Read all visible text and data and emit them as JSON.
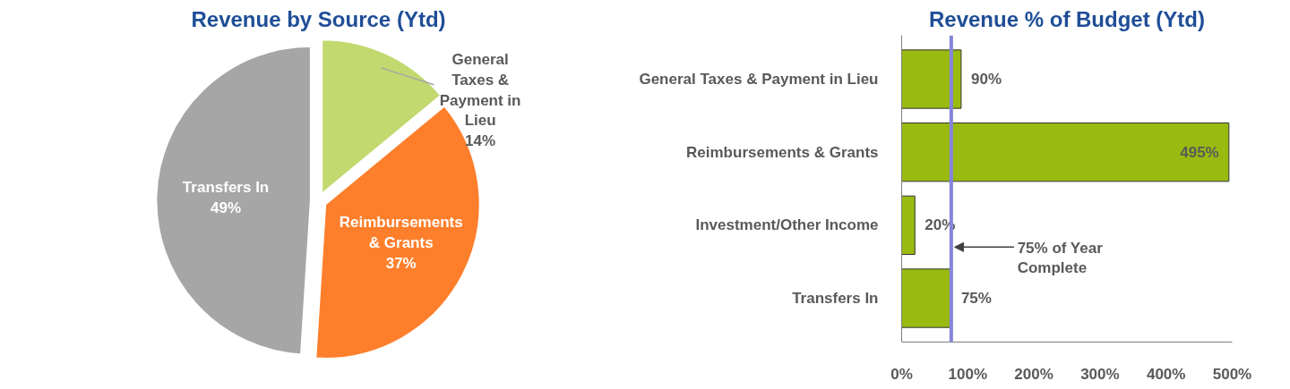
{
  "chart_data": [
    {
      "type": "pie",
      "title": "Revenue by Source (Ytd)",
      "categories": [
        "General Taxes & Payment in Lieu",
        "Reimbursements & Grants",
        "Transfers In"
      ],
      "values": [
        14,
        37,
        49
      ],
      "colors": [
        "#c2d96f",
        "#fd7f2c",
        "#a6a6a6"
      ],
      "value_labels": [
        "14%",
        "37%",
        "49%"
      ]
    },
    {
      "type": "bar",
      "orientation": "horizontal",
      "title": "Revenue % of Budget (Ytd)",
      "categories": [
        "General Taxes & Payment in Lieu",
        "Reimbursements & Grants",
        "Investment/Other Income",
        "Transfers In"
      ],
      "values": [
        90,
        495,
        20,
        75
      ],
      "color": "#99bb11",
      "value_labels": [
        "90%",
        "495%",
        "20%",
        "75%"
      ],
      "xlim": [
        0,
        500
      ],
      "xticks": [
        {
          "value": 0,
          "label": "0%"
        },
        {
          "value": 100,
          "label": "100%"
        },
        {
          "value": 200,
          "label": "200%"
        },
        {
          "value": 300,
          "label": "300%"
        },
        {
          "value": 400,
          "label": "400%"
        },
        {
          "value": 500,
          "label": "500%"
        }
      ],
      "ref_lines": [
        {
          "axis": "x",
          "value": 75,
          "label": "75% of Year Complete",
          "color": "#8585dd"
        }
      ],
      "grid": false
    }
  ]
}
